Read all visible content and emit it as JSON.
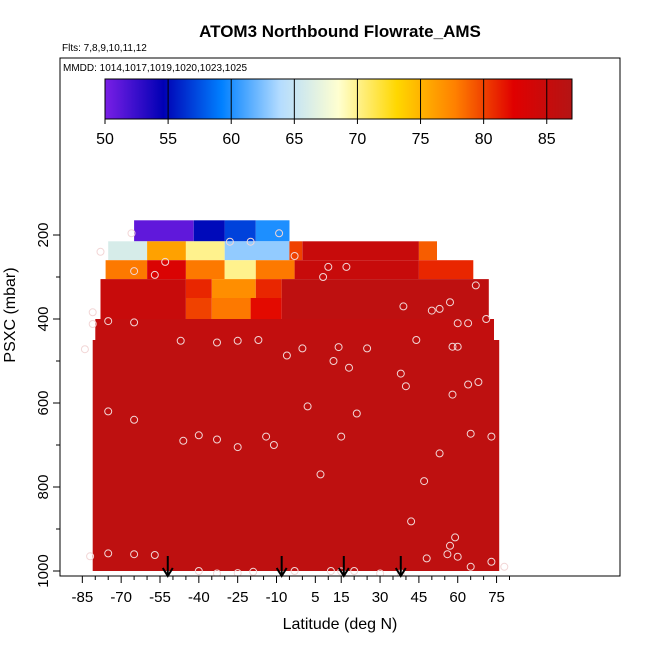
{
  "chart_data": {
    "type": "heatmap",
    "title": "ATOM3 Northbound Flowrate_AMS",
    "subtitle_flights": "Flts: 7,8,9,10,11,12",
    "subtitle_dates": "MMDD: 1014,1017,1019,1020,1023,1025",
    "xlabel": "Latitude (deg N)",
    "ylabel": "PSXC (mbar)",
    "xlim": [
      -85,
      85
    ],
    "ylim": [
      1000,
      150
    ],
    "x_ticks": [
      -85,
      -70,
      -55,
      -40,
      -25,
      -10,
      5,
      15,
      30,
      45,
      60,
      75
    ],
    "y_ticks": [
      200,
      400,
      600,
      800,
      1000
    ],
    "colorbar": {
      "range": [
        50,
        87
      ],
      "ticks": [
        50,
        55,
        60,
        65,
        70,
        75,
        80,
        85
      ],
      "colors": [
        "#7a1fe6",
        "#0000b4",
        "#0080ff",
        "#b4dcff",
        "#ffffd0",
        "#ffd700",
        "#ff8000",
        "#e00000",
        "#b41414"
      ]
    },
    "grid": false,
    "arrow_latitudes": [
      -52,
      -8,
      16,
      38
    ],
    "cells": [
      {
        "lat": [
          -65,
          -42
        ],
        "p": [
          165,
          215
        ],
        "value": 51
      },
      {
        "lat": [
          -42,
          -30
        ],
        "p": [
          165,
          215
        ],
        "value": 55
      },
      {
        "lat": [
          -30,
          -18
        ],
        "p": [
          165,
          215
        ],
        "value": 57
      },
      {
        "lat": [
          -18,
          -5
        ],
        "p": [
          165,
          215
        ],
        "value": 60
      },
      {
        "lat": [
          -75,
          -60
        ],
        "p": [
          215,
          260
        ],
        "value": 66
      },
      {
        "lat": [
          -60,
          -45
        ],
        "p": [
          215,
          260
        ],
        "value": 76
      },
      {
        "lat": [
          -45,
          -30
        ],
        "p": [
          215,
          260
        ],
        "value": 70
      },
      {
        "lat": [
          -30,
          -5
        ],
        "p": [
          215,
          260
        ],
        "value": 63
      },
      {
        "lat": [
          -5,
          0
        ],
        "p": [
          215,
          260
        ],
        "value": 80
      },
      {
        "lat": [
          0,
          45
        ],
        "p": [
          215,
          260
        ],
        "value": 85
      },
      {
        "lat": [
          45,
          52
        ],
        "p": [
          215,
          260
        ],
        "value": 79
      },
      {
        "lat": [
          -76,
          -60
        ],
        "p": [
          260,
          305
        ],
        "value": 78
      },
      {
        "lat": [
          -60,
          -45
        ],
        "p": [
          260,
          305
        ],
        "value": 83
      },
      {
        "lat": [
          -45,
          -30
        ],
        "p": [
          260,
          305
        ],
        "value": 78
      },
      {
        "lat": [
          -30,
          -18
        ],
        "p": [
          260,
          305
        ],
        "value": 70
      },
      {
        "lat": [
          -18,
          -3
        ],
        "p": [
          260,
          305
        ],
        "value": 78
      },
      {
        "lat": [
          -3,
          45
        ],
        "p": [
          260,
          305
        ],
        "value": 85
      },
      {
        "lat": [
          45,
          66
        ],
        "p": [
          260,
          305
        ],
        "value": 81
      },
      {
        "lat": [
          -78,
          -45
        ],
        "p": [
          305,
          350
        ],
        "value": 85
      },
      {
        "lat": [
          -45,
          -35
        ],
        "p": [
          305,
          350
        ],
        "value": 81
      },
      {
        "lat": [
          -35,
          -18
        ],
        "p": [
          305,
          350
        ],
        "value": 77
      },
      {
        "lat": [
          -18,
          -8
        ],
        "p": [
          305,
          350
        ],
        "value": 81
      },
      {
        "lat": [
          -8,
          72
        ],
        "p": [
          305,
          350
        ],
        "value": 86
      },
      {
        "lat": [
          -78,
          -45
        ],
        "p": [
          350,
          400
        ],
        "value": 85
      },
      {
        "lat": [
          -45,
          -35
        ],
        "p": [
          350,
          400
        ],
        "value": 80
      },
      {
        "lat": [
          -35,
          -20
        ],
        "p": [
          350,
          400
        ],
        "value": 78
      },
      {
        "lat": [
          -20,
          -8
        ],
        "p": [
          350,
          400
        ],
        "value": 82
      },
      {
        "lat": [
          -8,
          72
        ],
        "p": [
          350,
          400
        ],
        "value": 86
      },
      {
        "lat": [
          -80,
          74
        ],
        "p": [
          400,
          450
        ],
        "value": 85.5
      },
      {
        "lat": [
          -81,
          76
        ],
        "p": [
          450,
          1000
        ],
        "value": 86
      }
    ],
    "points": [
      {
        "lat": -66,
        "p": 196
      },
      {
        "lat": -28,
        "p": 216
      },
      {
        "lat": -20,
        "p": 216
      },
      {
        "lat": -9,
        "p": 196
      },
      {
        "lat": -78,
        "p": 240
      },
      {
        "lat": -53,
        "p": 264
      },
      {
        "lat": -65,
        "p": 286
      },
      {
        "lat": -57,
        "p": 295
      },
      {
        "lat": -3,
        "p": 250
      },
      {
        "lat": 10,
        "p": 276
      },
      {
        "lat": 17,
        "p": 276
      },
      {
        "lat": 8,
        "p": 300
      },
      {
        "lat": -81,
        "p": 384
      },
      {
        "lat": -81,
        "p": 412
      },
      {
        "lat": -75,
        "p": 405
      },
      {
        "lat": -65,
        "p": 408
      },
      {
        "lat": -47,
        "p": 452
      },
      {
        "lat": -33,
        "p": 456
      },
      {
        "lat": -25,
        "p": 452
      },
      {
        "lat": -17,
        "p": 450
      },
      {
        "lat": 25,
        "p": 470
      },
      {
        "lat": 39,
        "p": 370
      },
      {
        "lat": 40,
        "p": 560
      },
      {
        "lat": 44,
        "p": 450
      },
      {
        "lat": 50,
        "p": 380
      },
      {
        "lat": 53,
        "p": 376
      },
      {
        "lat": 57,
        "p": 360
      },
      {
        "lat": 60,
        "p": 410
      },
      {
        "lat": 64,
        "p": 410
      },
      {
        "lat": 67,
        "p": 320
      },
      {
        "lat": 71,
        "p": 400
      },
      {
        "lat": 73,
        "p": 680
      },
      {
        "lat": -84,
        "p": 472
      },
      {
        "lat": -75,
        "p": 620
      },
      {
        "lat": -65,
        "p": 640
      },
      {
        "lat": -46,
        "p": 690
      },
      {
        "lat": -40,
        "p": 677
      },
      {
        "lat": -33,
        "p": 687
      },
      {
        "lat": -25,
        "p": 705
      },
      {
        "lat": -14,
        "p": 680
      },
      {
        "lat": -6,
        "p": 487
      },
      {
        "lat": 0,
        "p": 470
      },
      {
        "lat": 12,
        "p": 500
      },
      {
        "lat": 14,
        "p": 467
      },
      {
        "lat": 18,
        "p": 516
      },
      {
        "lat": 2,
        "p": 608
      },
      {
        "lat": 15,
        "p": 680
      },
      {
        "lat": 21,
        "p": 625
      },
      {
        "lat": 38,
        "p": 530
      },
      {
        "lat": 47,
        "p": 786
      },
      {
        "lat": 53,
        "p": 720
      },
      {
        "lat": 58,
        "p": 466
      },
      {
        "lat": 58,
        "p": 580
      },
      {
        "lat": 60,
        "p": 466
      },
      {
        "lat": 64,
        "p": 556
      },
      {
        "lat": 68,
        "p": 550
      },
      {
        "lat": 65,
        "p": 673
      },
      {
        "lat": -11,
        "p": 700
      },
      {
        "lat": 7,
        "p": 770
      },
      {
        "lat": 42,
        "p": 882
      },
      {
        "lat": 59,
        "p": 920
      },
      {
        "lat": 57,
        "p": 940
      },
      {
        "lat": -75,
        "p": 958
      },
      {
        "lat": -65,
        "p": 960
      },
      {
        "lat": -57,
        "p": 962
      },
      {
        "lat": -40,
        "p": 1000
      },
      {
        "lat": -33,
        "p": 1006
      },
      {
        "lat": -25,
        "p": 1005
      },
      {
        "lat": -19,
        "p": 1002
      },
      {
        "lat": -3,
        "p": 1000
      },
      {
        "lat": 11,
        "p": 1000
      },
      {
        "lat": 15,
        "p": 1001
      },
      {
        "lat": 20,
        "p": 1000
      },
      {
        "lat": 30,
        "p": 1006
      },
      {
        "lat": 38,
        "p": 1006
      },
      {
        "lat": 48,
        "p": 970
      },
      {
        "lat": 56,
        "p": 960
      },
      {
        "lat": 65,
        "p": 990
      },
      {
        "lat": 73,
        "p": 978
      },
      {
        "lat": 78,
        "p": 990
      },
      {
        "lat": -82,
        "p": 965
      },
      {
        "lat": 60,
        "p": 966
      }
    ]
  }
}
